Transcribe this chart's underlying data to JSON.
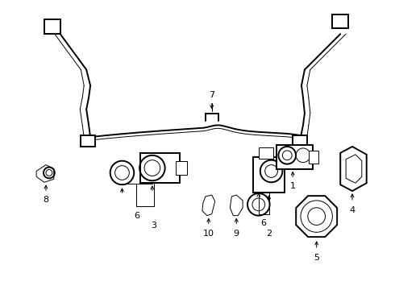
{
  "background_color": "#ffffff",
  "line_color": "#000000",
  "fig_width": 4.9,
  "fig_height": 3.6,
  "dpi": 100,
  "lw_main": 1.4,
  "lw_thin": 0.7,
  "lw_label": 0.6
}
